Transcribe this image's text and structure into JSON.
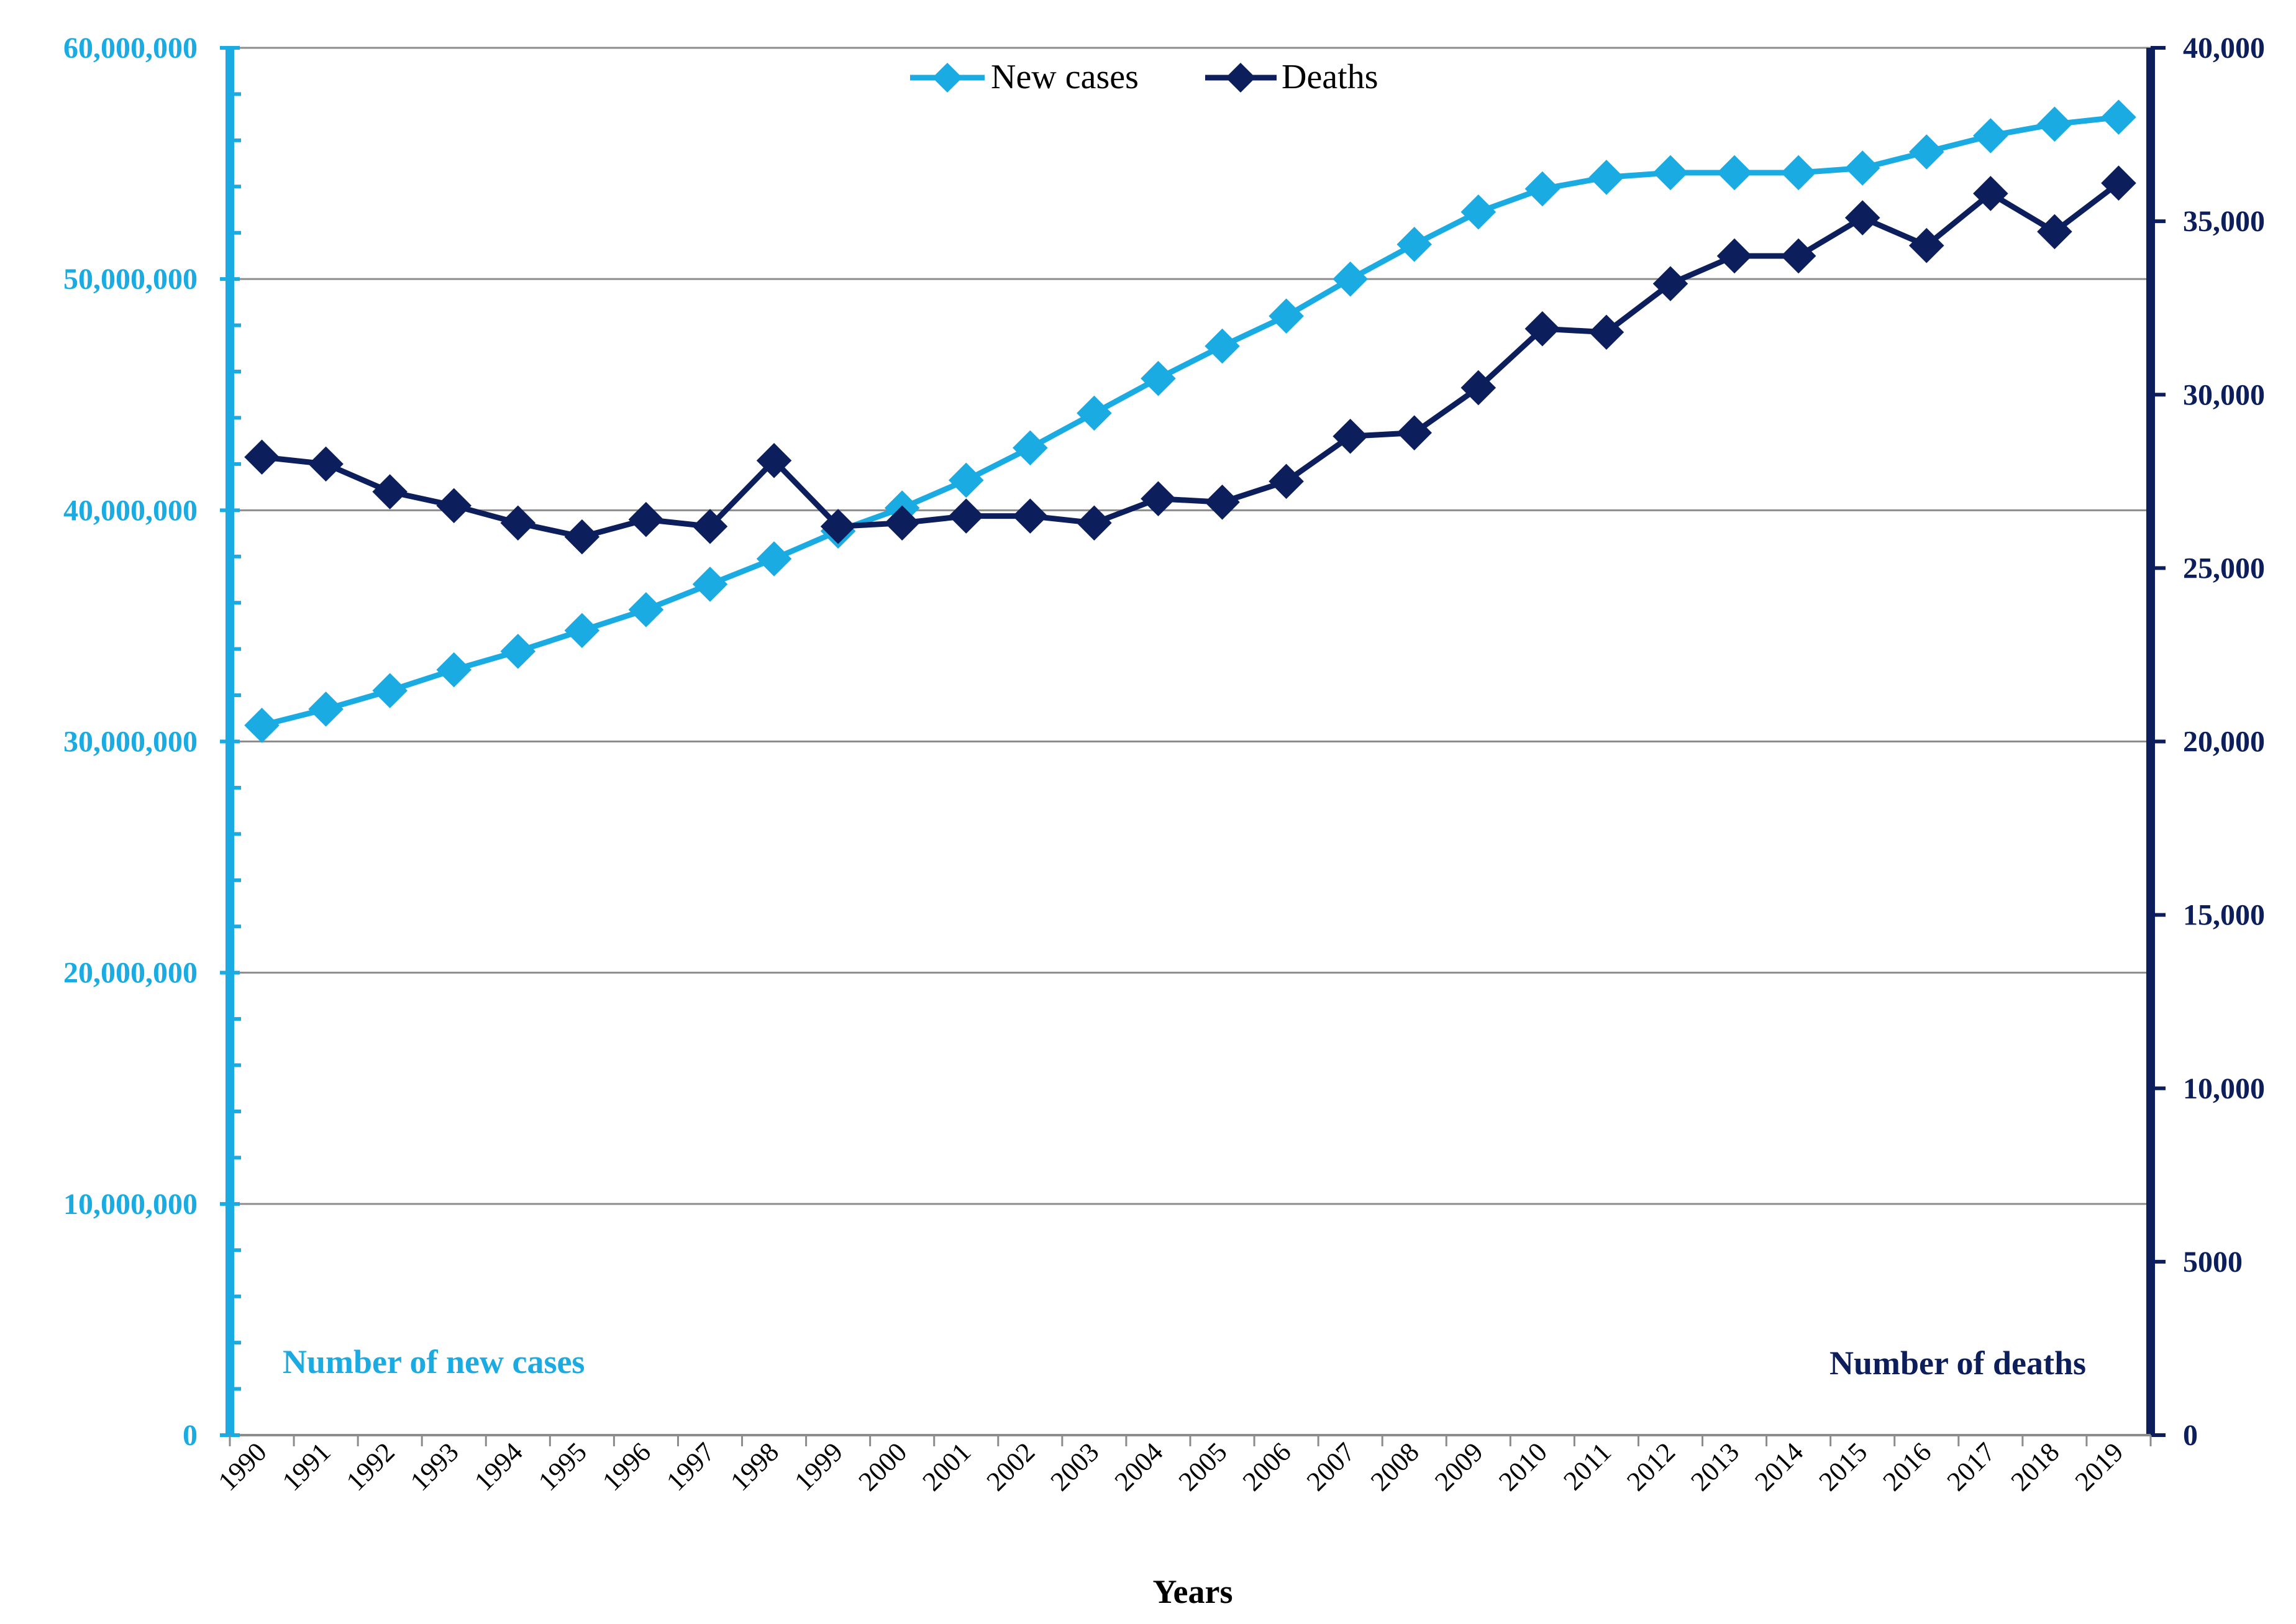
{
  "chart_data": {
    "type": "line",
    "title": "",
    "xlabel": "Years",
    "ylabel_left": "Number of new cases",
    "ylabel_right": "Number of deaths",
    "categories": [
      "1990",
      "1991",
      "1992",
      "1993",
      "1994",
      "1995",
      "1996",
      "1997",
      "1998",
      "1999",
      "2000",
      "2001",
      "2002",
      "2003",
      "2004",
      "2005",
      "2006",
      "2007",
      "2008",
      "2009",
      "2010",
      "2011",
      "2012",
      "2013",
      "2014",
      "2015",
      "2016",
      "2017",
      "2018",
      "2019"
    ],
    "series": [
      {
        "name": "New cases",
        "axis": "left",
        "color": "#1aabe3",
        "values": [
          30700000,
          31400000,
          32200000,
          33100000,
          33900000,
          34800000,
          35700000,
          36800000,
          37900000,
          39100000,
          40100000,
          41300000,
          42700000,
          44200000,
          45700000,
          47100000,
          48400000,
          50000000,
          51500000,
          52900000,
          53900000,
          54400000,
          54600000,
          54600000,
          54600000,
          54800000,
          55500000,
          56200000,
          56700000,
          57000000
        ]
      },
      {
        "name": "Deaths",
        "axis": "right",
        "color": "#0c1f5c",
        "values": [
          28200,
          28000,
          27200,
          26800,
          26300,
          25900,
          26400,
          26200,
          28100,
          26200,
          26300,
          26500,
          26500,
          26300,
          27000,
          26900,
          27500,
          28800,
          28900,
          30200,
          31900,
          31800,
          33200,
          34000,
          34000,
          35100,
          34300,
          35800,
          34700,
          36100
        ]
      }
    ],
    "ylim_left": [
      0,
      60000000
    ],
    "ylim_right": [
      0,
      40000
    ],
    "y_ticks_left": [
      "0",
      "10,000,000",
      "20,000,000",
      "30,000,000",
      "40,000,000",
      "50,000,000",
      "60,000,000"
    ],
    "y_ticks_right": [
      "0",
      "5000",
      "10,000",
      "15,000",
      "20,000",
      "25,000",
      "30,000",
      "35,000",
      "40,000"
    ],
    "grid": true,
    "legend_position": "top-center"
  }
}
